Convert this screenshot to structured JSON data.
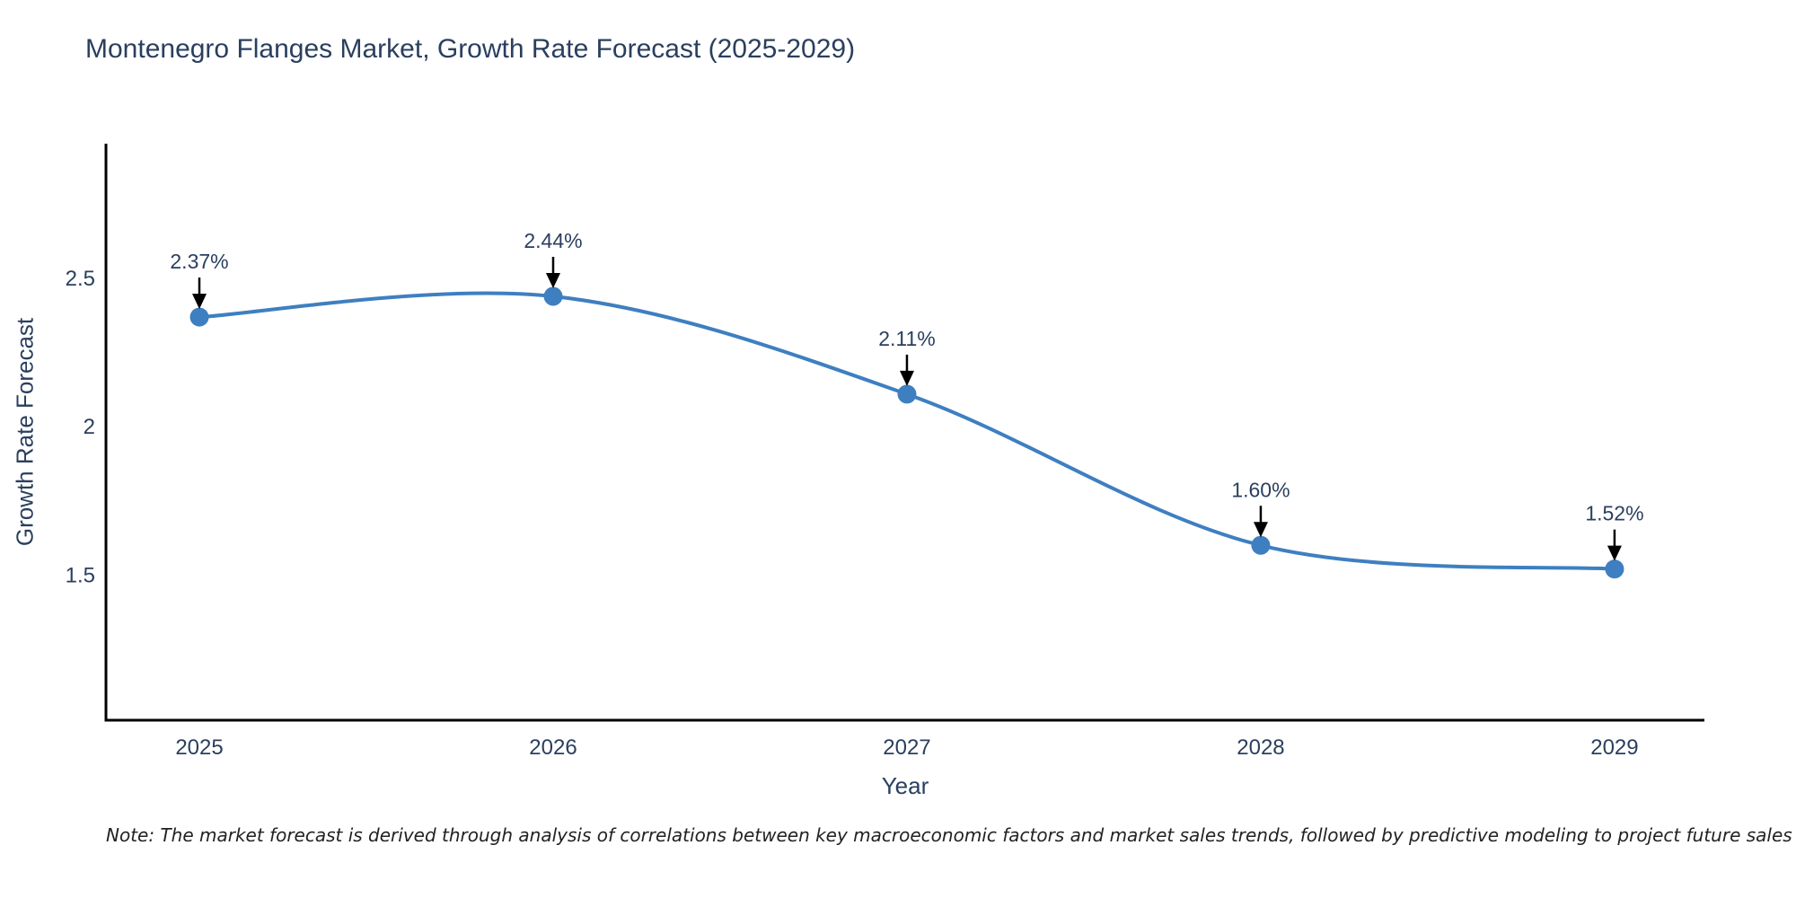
{
  "title": "Montenegro Flanges Market, Growth Rate Forecast (2025-2029)",
  "note": "Note: The market forecast is derived through analysis of correlations between key macroeconomic factors and market sales trends, followed by predictive modeling to project future sales",
  "chart_data": {
    "type": "line",
    "line_shape": "spline",
    "title": "Montenegro Flanges Market, Growth Rate Forecast (2025-2029)",
    "xlabel": "Year",
    "ylabel": "Growth Rate Forecast",
    "x": [
      2025,
      2026,
      2027,
      2028,
      2029
    ],
    "values": [
      2.37,
      2.44,
      2.11,
      1.6,
      1.52
    ],
    "point_labels": [
      "2.37%",
      "2.44%",
      "2.11%",
      "1.60%",
      "1.52%"
    ],
    "xtick_labels": [
      "2025",
      "2026",
      "2027",
      "2028",
      "2029"
    ],
    "yticks": [
      2.5,
      2.0,
      1.5
    ],
    "ytick_labels": [
      "2.5",
      "2",
      "1.5"
    ],
    "xlim": [
      2024.736,
      2029.254
    ],
    "ylim": [
      1.01,
      2.955
    ],
    "grid": false,
    "legend": false,
    "colors": {
      "line": "#3e7fc1",
      "marker": "#3e7fc1",
      "axis": "#000000",
      "tick_text": "#2a3f5f",
      "annotation_text": "#2a3f5f",
      "annotation_arrow": "#000000",
      "background": "#ffffff"
    }
  }
}
